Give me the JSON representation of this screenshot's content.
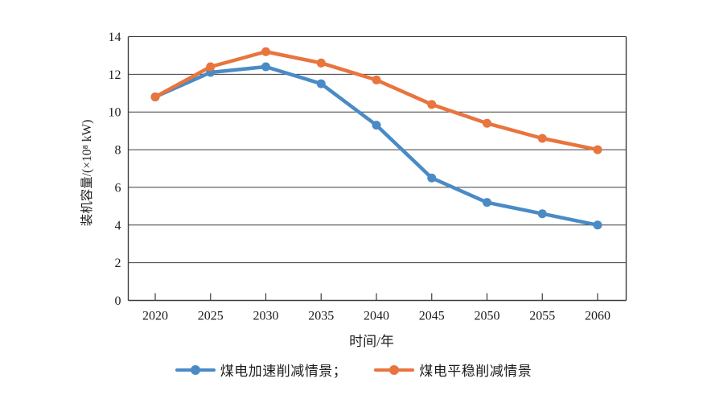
{
  "chart_data": {
    "type": "line",
    "categories": [
      "2020",
      "2025",
      "2030",
      "2035",
      "2040",
      "2045",
      "2050",
      "2055",
      "2060"
    ],
    "series": [
      {
        "name": "煤电加速削减情景",
        "color": "#4A8BC6",
        "values": [
          10.8,
          12.1,
          12.4,
          11.5,
          9.3,
          6.5,
          5.2,
          4.6,
          4.0
        ]
      },
      {
        "name": "煤电平稳削减情景",
        "color": "#E8743E",
        "values": [
          10.8,
          12.4,
          13.2,
          12.6,
          11.7,
          10.4,
          9.4,
          8.6,
          8.0
        ]
      }
    ],
    "title": "",
    "xlabel": "时间/年",
    "ylabel": "装机容量/(×10⁸ kW)",
    "ylim": [
      0,
      14
    ],
    "ytick_step": 2,
    "yticks": [
      "0",
      "2",
      "4",
      "6",
      "8",
      "10",
      "12",
      "14"
    ],
    "grid": "horizontal",
    "legend_position": "bottom",
    "legend_labels": [
      "煤电加速削减情景；",
      "煤电平稳削减情景"
    ],
    "axis_color": "#3c3c3c"
  }
}
